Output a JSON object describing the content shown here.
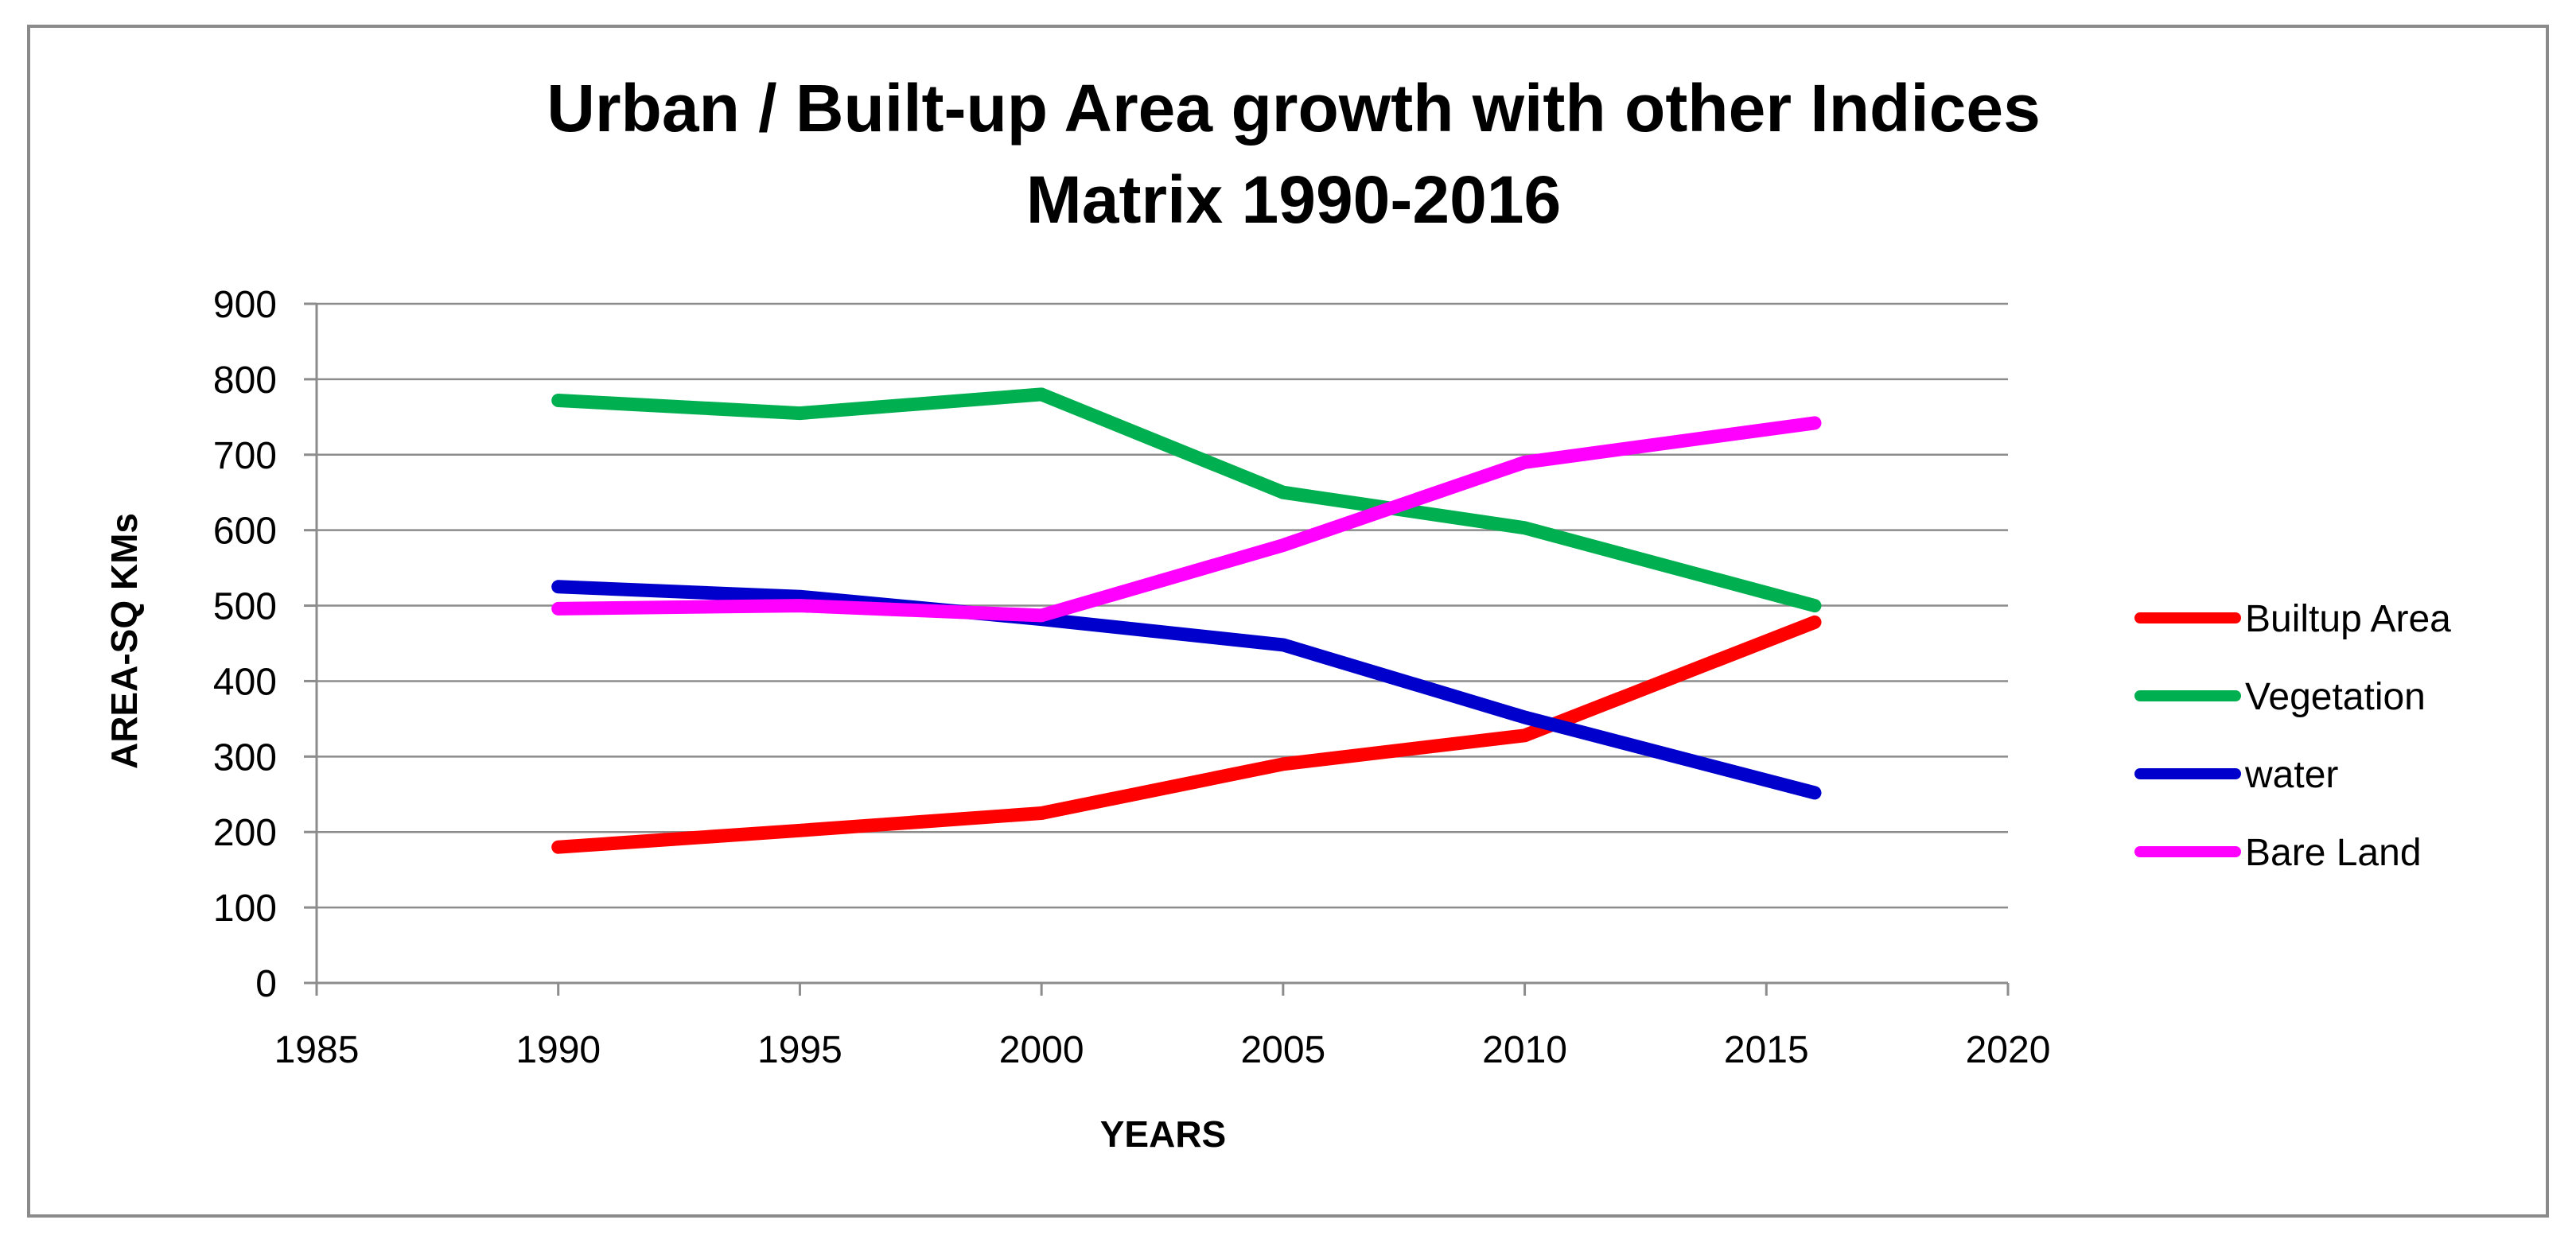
{
  "chart_data": {
    "type": "line",
    "title_lines": [
      "Urban / Built-up Area growth with other Indices",
      "Matrix 1990-2016"
    ],
    "xlabel": "YEARS",
    "ylabel": "AREA-SQ KMs",
    "xlim": [
      1985,
      2020
    ],
    "ylim": [
      0,
      900
    ],
    "x_ticks": [
      1985,
      1990,
      1995,
      2000,
      2005,
      2010,
      2015,
      2020
    ],
    "y_ticks": [
      0,
      100,
      200,
      300,
      400,
      500,
      600,
      700,
      800,
      900
    ],
    "grid": true,
    "legend_position": "right",
    "series": [
      {
        "name": "Builtup Area",
        "color": "#ff0000",
        "points": [
          [
            1990,
            180
          ],
          [
            1995,
            202
          ],
          [
            2000,
            225
          ],
          [
            2005,
            290
          ],
          [
            2010,
            328
          ],
          [
            2016,
            478
          ]
        ]
      },
      {
        "name": "Vegetation",
        "color": "#00b050",
        "points": [
          [
            1990,
            772
          ],
          [
            1995,
            755
          ],
          [
            2000,
            780
          ],
          [
            2005,
            650
          ],
          [
            2010,
            603
          ],
          [
            2016,
            500
          ]
        ]
      },
      {
        "name": "water",
        "color": "#0000cc",
        "points": [
          [
            1990,
            525
          ],
          [
            1995,
            512
          ],
          [
            2000,
            482
          ],
          [
            2005,
            448
          ],
          [
            2010,
            352
          ],
          [
            2016,
            252
          ]
        ]
      },
      {
        "name": "Bare Land",
        "color": "#ff00ff",
        "points": [
          [
            1990,
            496
          ],
          [
            1995,
            500
          ],
          [
            2000,
            487
          ],
          [
            2005,
            580
          ],
          [
            2010,
            690
          ],
          [
            2016,
            742
          ]
        ]
      }
    ]
  }
}
